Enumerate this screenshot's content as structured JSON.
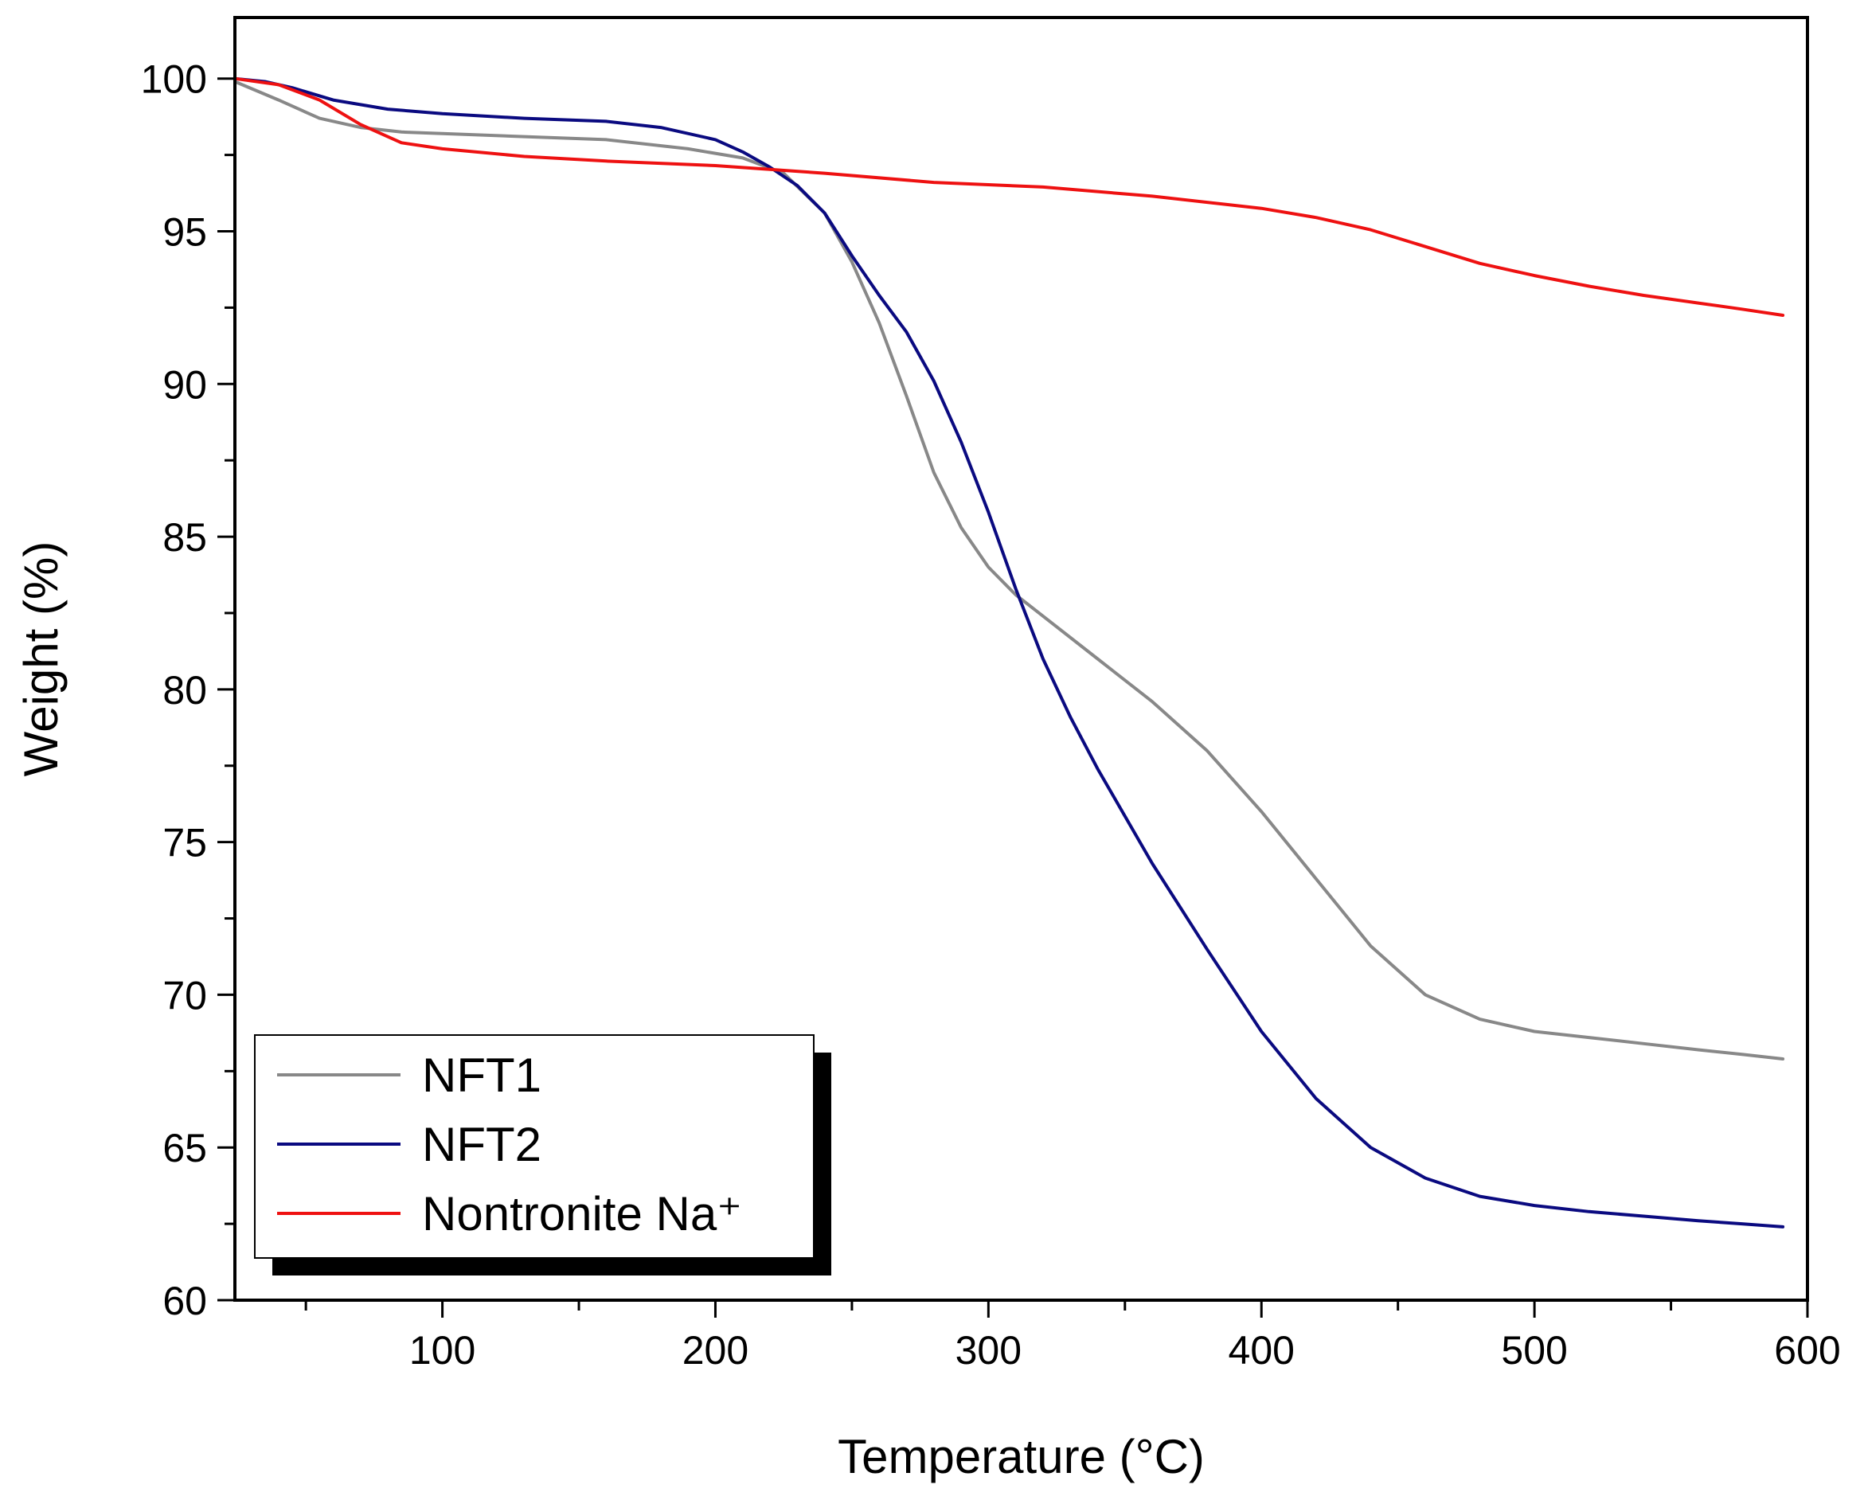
{
  "chart_data": {
    "type": "line",
    "title": "",
    "xlabel": "Temperature (°C)",
    "ylabel": "Weight (%)",
    "xlim": [
      24,
      600
    ],
    "ylim": [
      60,
      102
    ],
    "xticks": [
      100,
      200,
      300,
      400,
      500,
      600
    ],
    "yticks": [
      60,
      65,
      70,
      75,
      80,
      85,
      90,
      95,
      100
    ],
    "x_minor_step": 50,
    "y_minor_step": 2.5,
    "legend": {
      "position": "bottom-left",
      "framed": true,
      "shadow": true
    },
    "series": [
      {
        "name": "NFT1",
        "color": "#888888",
        "x": [
          24,
          40,
          55,
          70,
          85,
          100,
          130,
          160,
          190,
          210,
          225,
          240,
          250,
          260,
          270,
          280,
          290,
          300,
          310,
          320,
          340,
          360,
          380,
          400,
          420,
          440,
          460,
          480,
          500,
          520,
          540,
          560,
          576,
          591
        ],
        "y": [
          99.9,
          99.3,
          98.7,
          98.4,
          98.25,
          98.2,
          98.1,
          98.0,
          97.7,
          97.4,
          96.9,
          95.6,
          94.0,
          92.0,
          89.6,
          87.1,
          85.3,
          84.0,
          83.1,
          82.4,
          81.0,
          79.6,
          78.0,
          76.0,
          73.8,
          71.6,
          70.0,
          69.2,
          68.8,
          68.6,
          68.4,
          68.2,
          68.05,
          67.9
        ]
      },
      {
        "name": "NFT2",
        "color": "#0a0a80",
        "x": [
          24,
          35,
          45,
          60,
          80,
          100,
          130,
          160,
          180,
          200,
          210,
          220,
          230,
          240,
          250,
          260,
          270,
          280,
          290,
          300,
          310,
          320,
          330,
          340,
          360,
          380,
          400,
          420,
          440,
          460,
          480,
          500,
          520,
          540,
          560,
          576,
          591
        ],
        "y": [
          100.0,
          99.9,
          99.7,
          99.3,
          99.0,
          98.85,
          98.7,
          98.6,
          98.4,
          98.0,
          97.6,
          97.1,
          96.5,
          95.6,
          94.2,
          92.9,
          91.7,
          90.1,
          88.1,
          85.8,
          83.3,
          81.0,
          79.1,
          77.4,
          74.3,
          71.5,
          68.8,
          66.6,
          65.0,
          64.0,
          63.4,
          63.1,
          62.9,
          62.75,
          62.6,
          62.5,
          62.4
        ]
      },
      {
        "name": "Nontronite Na⁺",
        "color": "#ee1111",
        "x": [
          24,
          40,
          55,
          70,
          85,
          100,
          130,
          160,
          200,
          240,
          280,
          320,
          360,
          400,
          420,
          440,
          460,
          480,
          500,
          520,
          540,
          560,
          576,
          591
        ],
        "y": [
          100.0,
          99.8,
          99.3,
          98.5,
          97.9,
          97.7,
          97.45,
          97.3,
          97.15,
          96.9,
          96.6,
          96.45,
          96.15,
          95.75,
          95.45,
          95.05,
          94.5,
          93.95,
          93.55,
          93.2,
          92.9,
          92.65,
          92.45,
          92.25
        ]
      }
    ]
  }
}
